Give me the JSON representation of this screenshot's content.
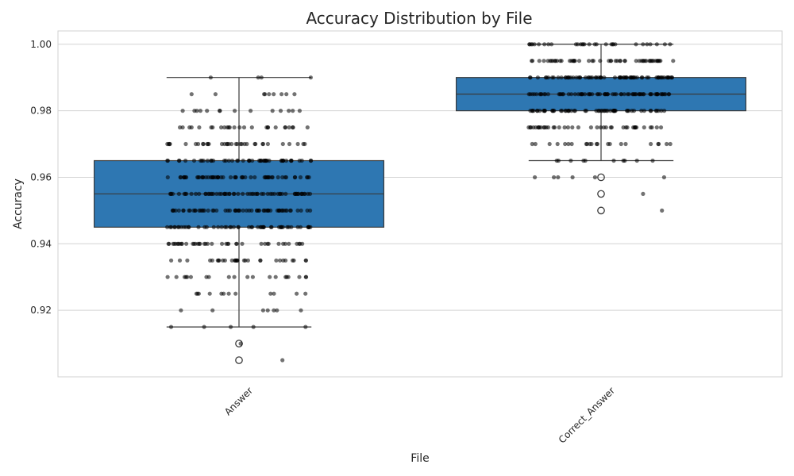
{
  "chart_data": {
    "type": "box",
    "title": "Accuracy Distribution by File",
    "xlabel": "File",
    "ylabel": "Accuracy",
    "categories": [
      "Answer",
      "Correct_Answer"
    ],
    "ylim": [
      0.9,
      1.004
    ],
    "yticks": [
      0.92,
      0.94,
      0.96,
      0.98,
      1.0
    ],
    "ytick_labels": [
      "0.92",
      "0.94",
      "0.96",
      "0.98",
      "1.00"
    ],
    "grid": true,
    "colors": {
      "box": "#2e77b2",
      "edge": "#3a3a3a",
      "points": "#000000",
      "grid": "#d3d3d3"
    },
    "boxes": [
      {
        "category": "Answer",
        "q1": 0.945,
        "median": 0.955,
        "q3": 0.965,
        "whisker_low": 0.915,
        "whisker_high": 0.99,
        "outliers": [
          0.91,
          0.905
        ]
      },
      {
        "category": "Correct_Answer",
        "q1": 0.98,
        "median": 0.985,
        "q3": 0.99,
        "whisker_low": 0.965,
        "whisker_high": 1.0,
        "outliers": [
          0.96,
          0.955,
          0.95
        ]
      }
    ],
    "strip": [
      {
        "category": "Answer",
        "levels": [
          {
            "y": 0.99,
            "count": 4
          },
          {
            "y": 0.985,
            "count": 9
          },
          {
            "y": 0.98,
            "count": 14
          },
          {
            "y": 0.975,
            "count": 26
          },
          {
            "y": 0.97,
            "count": 34
          },
          {
            "y": 0.965,
            "count": 48
          },
          {
            "y": 0.96,
            "count": 56
          },
          {
            "y": 0.955,
            "count": 62
          },
          {
            "y": 0.95,
            "count": 60
          },
          {
            "y": 0.945,
            "count": 52
          },
          {
            "y": 0.94,
            "count": 40
          },
          {
            "y": 0.935,
            "count": 30
          },
          {
            "y": 0.93,
            "count": 20
          },
          {
            "y": 0.925,
            "count": 12
          },
          {
            "y": 0.92,
            "count": 7
          },
          {
            "y": 0.915,
            "count": 5
          },
          {
            "y": 0.91,
            "count": 1
          },
          {
            "y": 0.905,
            "count": 1
          }
        ]
      },
      {
        "category": "Correct_Answer",
        "levels": [
          {
            "y": 1.0,
            "count": 30
          },
          {
            "y": 0.995,
            "count": 52
          },
          {
            "y": 0.99,
            "count": 70
          },
          {
            "y": 0.985,
            "count": 72
          },
          {
            "y": 0.98,
            "count": 58
          },
          {
            "y": 0.975,
            "count": 40
          },
          {
            "y": 0.97,
            "count": 22
          },
          {
            "y": 0.965,
            "count": 10
          },
          {
            "y": 0.96,
            "count": 6
          },
          {
            "y": 0.955,
            "count": 1
          },
          {
            "y": 0.95,
            "count": 1
          }
        ]
      }
    ]
  }
}
